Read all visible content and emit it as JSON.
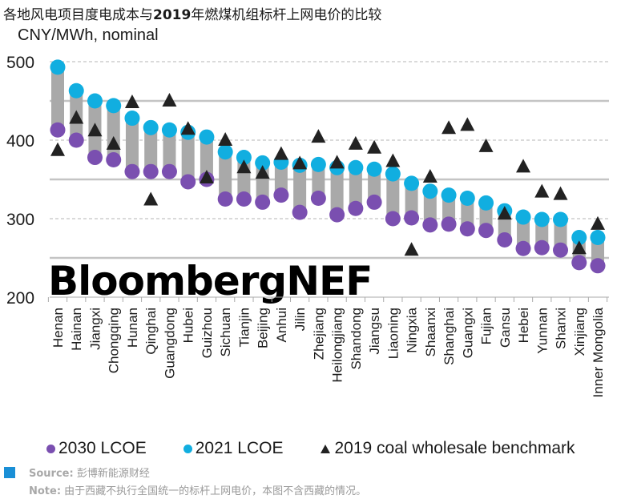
{
  "header": {
    "title_prefix": "各地风电项目度电成本与",
    "title_year": "2019",
    "title_suffix": "年燃煤机组标杆上网电价的比较",
    "unit": "CNY/MWh, nominal"
  },
  "watermark": "BloombergNEF",
  "legend": {
    "lcoe_2030": "2030 LCOE",
    "lcoe_2021": "2021 LCOE",
    "coal_2019": "2019 coal wholesale benchmark"
  },
  "footer": {
    "source_label": "Source:",
    "source_text": " 彭博新能源财经",
    "note_label": "Note:",
    "note_text": " 由于西藏不执行全国统一的标杆上网电价，本图不含西藏的情况。"
  },
  "colors": {
    "lcoe_2030": "#7a4fb0",
    "lcoe_2021": "#11aee0",
    "coal_2019": "#222222",
    "range_bar": "#a9a9a9",
    "source_square": "#1a8fd6"
  },
  "chart_data": {
    "type": "scatter",
    "title": "各地风电项目度电成本与2019年燃煤机组标杆上网电价的比较",
    "ylabel": "CNY/MWh, nominal",
    "xlabel": "",
    "ylim": [
      200,
      500
    ],
    "yticks": [
      200,
      300,
      400,
      500
    ],
    "grid": true,
    "legend_position": "bottom",
    "categories": [
      "Henan",
      "Hainan",
      "Jiangxi",
      "Chongqing",
      "Hunan",
      "Qinghai",
      "Guangdong",
      "Hubei",
      "Guizhou",
      "Sichuan",
      "Tianjin",
      "Beijing",
      "Anhui",
      "Jilin",
      "Zhejiang",
      "Heilongjiang",
      "Shandong",
      "Jiangsu",
      "Liaoning",
      "Ningxia",
      "Shaanxi",
      "Shanghai",
      "Guangxi",
      "Fujian",
      "Gansu",
      "Hebei",
      "Yunnan",
      "Shanxi",
      "Xinjiang",
      "Inner Mongolia"
    ],
    "series": [
      {
        "name": "2030 LCOE",
        "marker": "circle",
        "values": [
          413,
          400,
          378,
          375,
          360,
          360,
          360,
          347,
          350,
          325,
          325,
          321,
          330,
          308,
          326,
          305,
          313,
          321,
          300,
          301,
          292,
          293,
          287,
          285,
          273,
          262,
          263,
          260,
          244,
          240
        ]
      },
      {
        "name": "2021 LCOE",
        "marker": "circle",
        "values": [
          493,
          463,
          450,
          444,
          428,
          416,
          413,
          410,
          404,
          385,
          378,
          371,
          372,
          368,
          369,
          365,
          365,
          363,
          357,
          345,
          335,
          330,
          326,
          320,
          310,
          302,
          299,
          299,
          276,
          276
        ]
      },
      {
        "name": "2019 coal wholesale benchmark",
        "marker": "triangle",
        "values": [
          387,
          428,
          412,
          395,
          448,
          324,
          450,
          414,
          352,
          400,
          365,
          358,
          382,
          370,
          404,
          371,
          395,
          390,
          373,
          260,
          353,
          415,
          419,
          392,
          306,
          366,
          334,
          331,
          262,
          293
        ]
      }
    ]
  }
}
